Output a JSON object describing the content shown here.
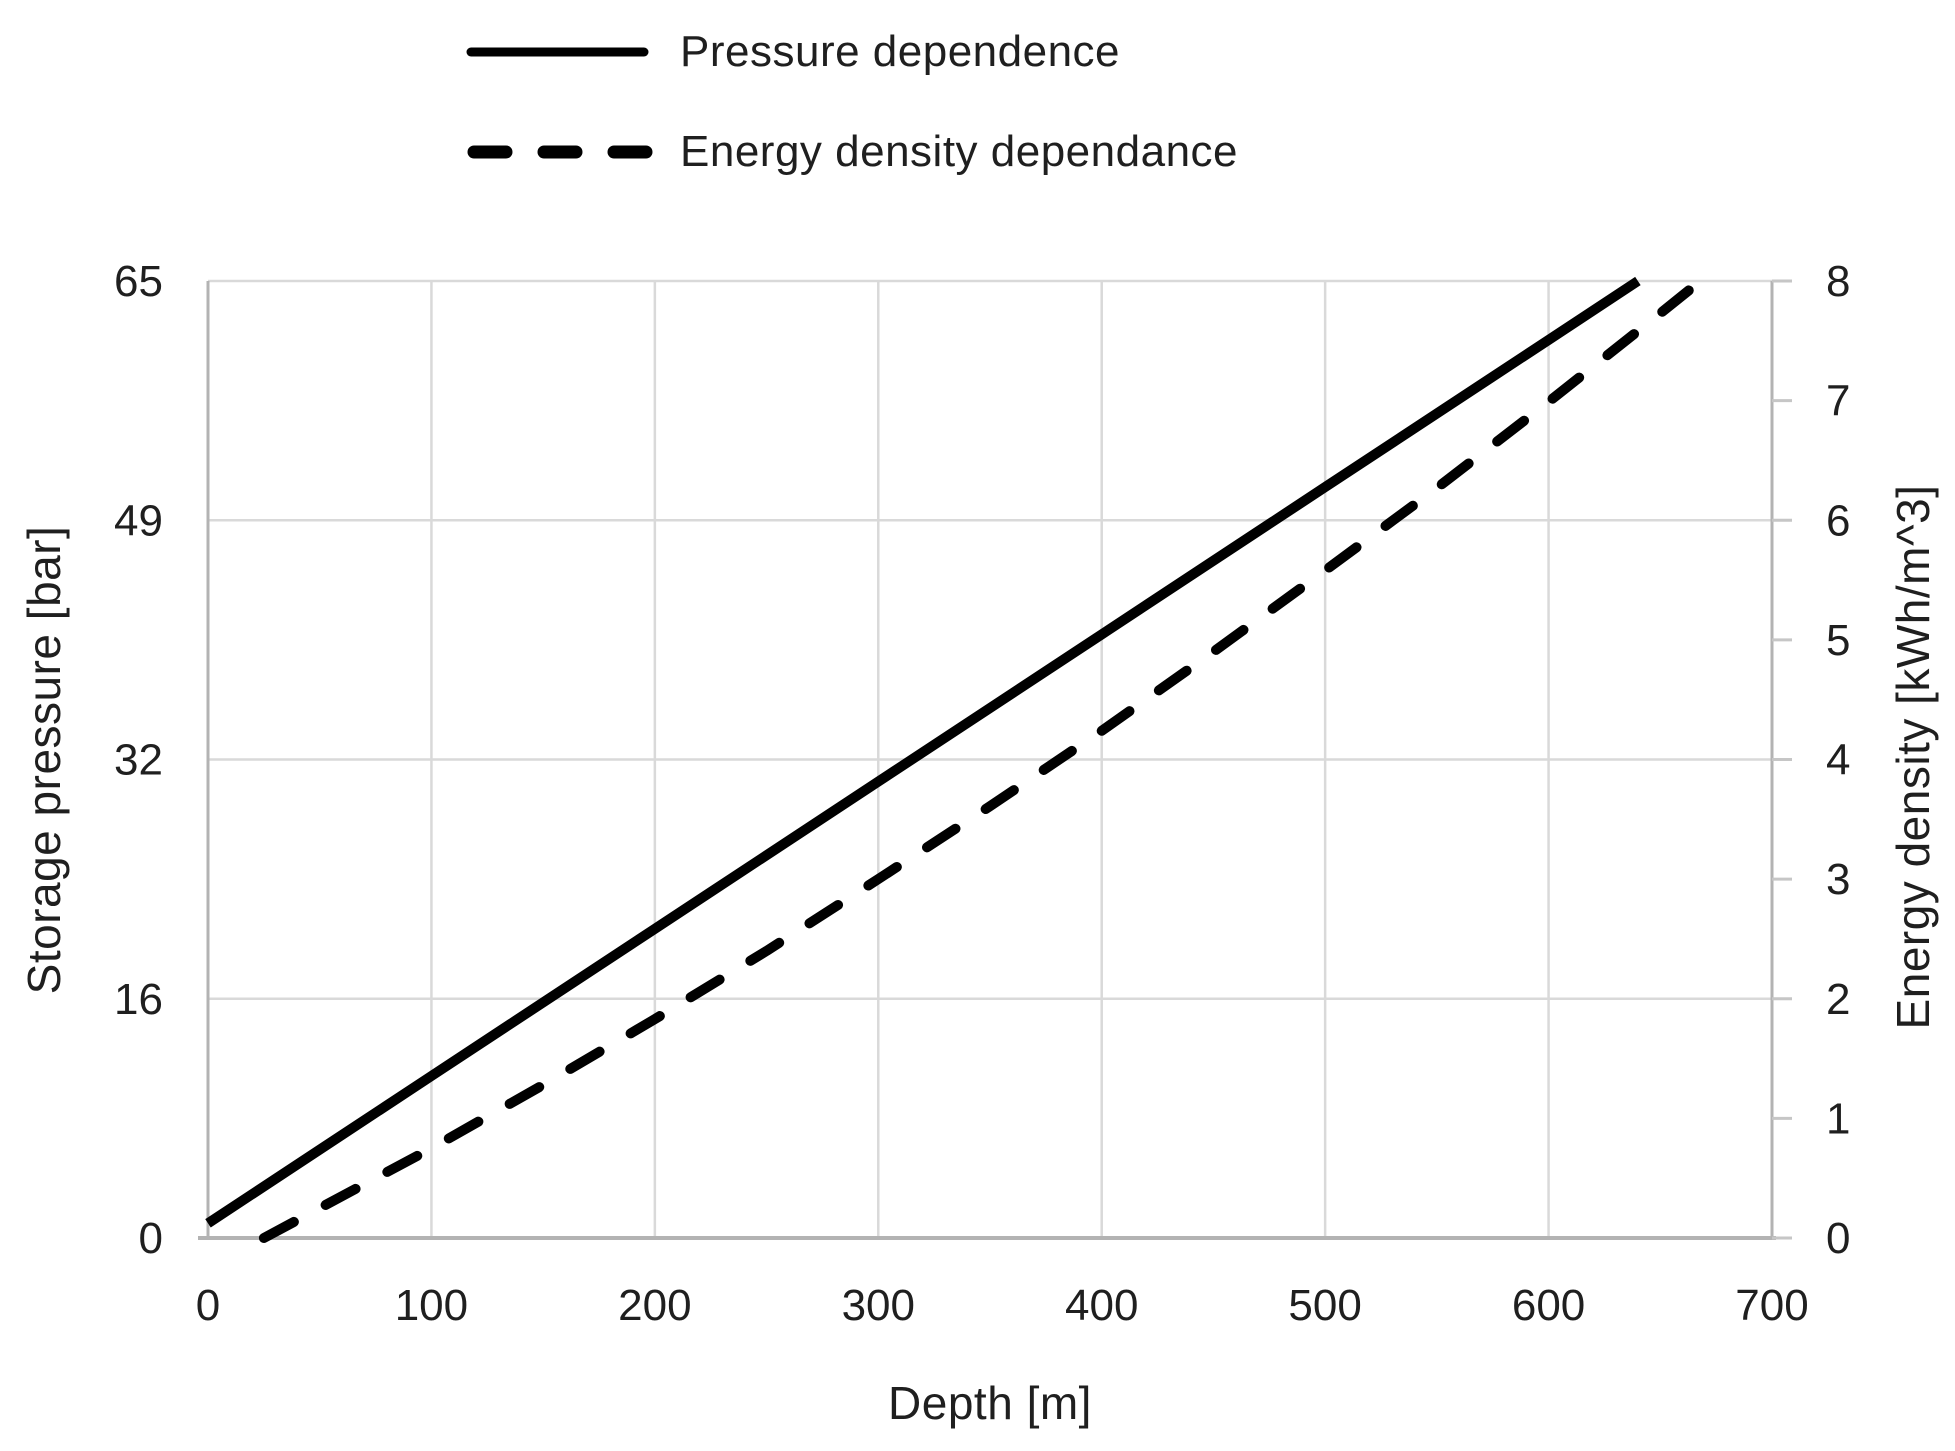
{
  "chart": {
    "legend": {
      "position": "top",
      "items": [
        {
          "label": "Pressure dependence",
          "line_style": "solid"
        },
        {
          "label": "Energy density dependance",
          "line_style": "dashed"
        }
      ]
    },
    "axes": {
      "x": {
        "title": "Depth [m]",
        "ticks": [
          0,
          100,
          200,
          300,
          400,
          500,
          600,
          700
        ]
      },
      "y_left": {
        "title": "Storage pressure [bar]",
        "tick_labels": [
          "0",
          "16",
          "32",
          "49",
          "65"
        ]
      },
      "y_right": {
        "title": "Energy density [kWh/m^3]",
        "ticks": [
          0,
          1,
          2,
          3,
          4,
          5,
          6,
          7,
          8
        ]
      }
    }
  },
  "chart_data": {
    "type": "line",
    "title": "",
    "xlabel": "Depth [m]",
    "ylabel_left": "Storage pressure [bar]",
    "ylabel_right": "Energy density [kWh/m^3]",
    "x_range": [
      0,
      700
    ],
    "y_left_range": [
      0,
      65
    ],
    "y_right_range": [
      0,
      8
    ],
    "x_tick_step": 100,
    "y_left_tick_values": [
      0,
      16,
      32,
      49,
      65
    ],
    "y_right_tick_step": 1,
    "y_right_grid_step": 2,
    "grid": true,
    "legend_position": "top-left",
    "series": [
      {
        "name": "Pressure dependence",
        "axis": "left",
        "style": "solid",
        "color": "#000000",
        "points": [
          [
            0,
            1
          ],
          [
            100,
            11
          ],
          [
            200,
            21
          ],
          [
            300,
            31
          ],
          [
            400,
            41
          ],
          [
            500,
            51
          ],
          [
            600,
            61
          ],
          [
            640,
            65
          ]
        ]
      },
      {
        "name": "Energy density dependance",
        "axis": "right",
        "style": "dashed",
        "color": "#000000",
        "points": [
          [
            25,
            0
          ],
          [
            50,
            0.25
          ],
          [
            100,
            0.75
          ],
          [
            150,
            1.28
          ],
          [
            200,
            1.83
          ],
          [
            250,
            2.4
          ],
          [
            300,
            3.0
          ],
          [
            350,
            3.61
          ],
          [
            400,
            4.24
          ],
          [
            450,
            4.9
          ],
          [
            500,
            5.58
          ],
          [
            550,
            6.27
          ],
          [
            600,
            6.99
          ],
          [
            650,
            7.73
          ],
          [
            668,
            8.0
          ]
        ]
      }
    ]
  },
  "style": {
    "series_color": "#000000",
    "grid_color": "#d9d9d9",
    "axis_color": "#b3b3b3",
    "tick_mark_color": "#c6c6c6",
    "text_color": "#1f1f1f"
  }
}
